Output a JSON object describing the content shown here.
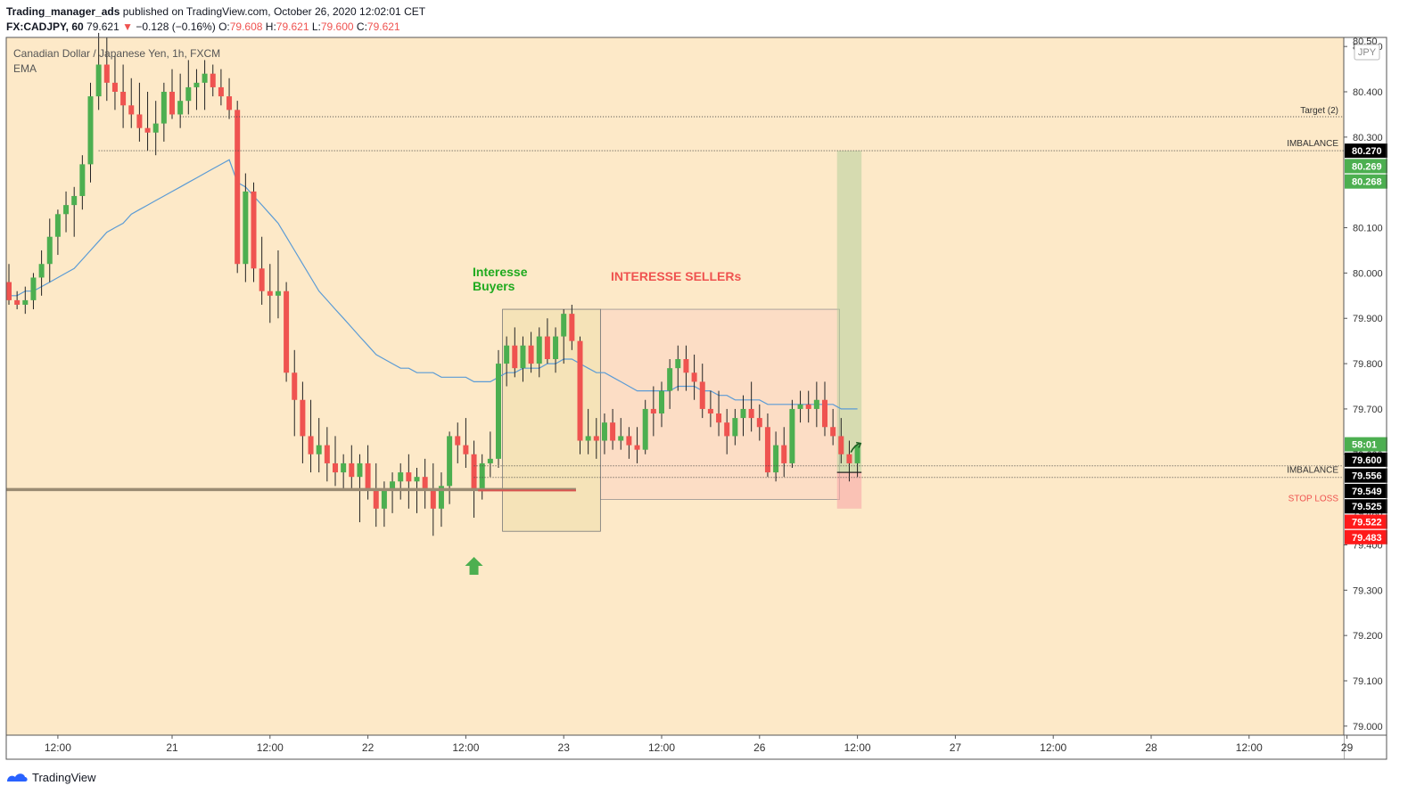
{
  "header": {
    "author": "Trading_manager_ads",
    "published_text": "published on TradingView.com, October 26, 2020 12:02:01 CET",
    "symbol": "FX:CADJPY, 60",
    "last": "79.621",
    "arrow": "▼",
    "change": "−0.128 (−0.16%)",
    "o_label": "O:",
    "o_value": "79.608",
    "h_label": "H:",
    "h_value": "79.621",
    "l_label": "L:",
    "l_value": "79.600",
    "c_label": "C:",
    "c_value": "79.621"
  },
  "legend": {
    "title": "Canadian Dollar / Japanese Yen, 1h, FXCM",
    "indicator": "EMA"
  },
  "currency_badge": "JPY",
  "footer": {
    "brand": "TradingView"
  },
  "colors": {
    "background": "#fde9c8",
    "up": "#4caf50",
    "down": "#ef5350",
    "ema": "#5b9bd5",
    "buyers_text": "#1faa1f",
    "sellers_text": "#ef5350",
    "black_badge": "#000000",
    "green_badge": "#4caf50",
    "red_badge": "#ff1a1a"
  },
  "chart_data": {
    "type": "candlestick",
    "ylim": [
      78.98,
      80.52
    ],
    "y_ticks": [
      "80.500",
      "80.400",
      "80.300",
      "80.100",
      "80.000",
      "79.900",
      "79.800",
      "79.700",
      "79.600",
      "79.400",
      "79.300",
      "79.200",
      "79.100",
      "79.000"
    ],
    "x_ticks": [
      {
        "label": "12:00",
        "i": 6
      },
      {
        "label": "21",
        "i": 20
      },
      {
        "label": "12:00",
        "i": 32
      },
      {
        "label": "22",
        "i": 44
      },
      {
        "label": "12:00",
        "i": 56
      },
      {
        "label": "23",
        "i": 68
      },
      {
        "label": "12:00",
        "i": 80
      },
      {
        "label": "26",
        "i": 92
      },
      {
        "label": "12:00",
        "i": 104
      },
      {
        "label": "27",
        "i": 116
      },
      {
        "label": "12:00",
        "i": 128
      },
      {
        "label": "28",
        "i": 140
      },
      {
        "label": "12:00",
        "i": 152
      },
      {
        "label": "29",
        "i": 164
      }
    ],
    "candles": [
      [
        79.98,
        80.02,
        79.93,
        79.94
      ],
      [
        79.94,
        79.96,
        79.92,
        79.93
      ],
      [
        79.93,
        79.97,
        79.91,
        79.94
      ],
      [
        79.94,
        80.0,
        79.92,
        79.99
      ],
      [
        79.99,
        80.05,
        79.95,
        80.02
      ],
      [
        80.02,
        80.12,
        79.98,
        80.08
      ],
      [
        80.08,
        80.14,
        80.04,
        80.13
      ],
      [
        80.13,
        80.18,
        80.09,
        80.15
      ],
      [
        80.15,
        80.19,
        80.08,
        80.17
      ],
      [
        80.17,
        80.26,
        80.14,
        80.24
      ],
      [
        80.24,
        80.42,
        80.2,
        80.39
      ],
      [
        80.39,
        80.53,
        80.36,
        80.46
      ],
      [
        80.46,
        80.52,
        80.38,
        80.42
      ],
      [
        80.42,
        80.48,
        80.36,
        80.4
      ],
      [
        80.4,
        80.46,
        80.32,
        80.37
      ],
      [
        80.37,
        80.43,
        80.32,
        80.35
      ],
      [
        80.35,
        80.42,
        80.29,
        80.32
      ],
      [
        80.32,
        80.4,
        80.27,
        80.31
      ],
      [
        80.31,
        80.38,
        80.26,
        80.33
      ],
      [
        80.33,
        80.42,
        80.29,
        80.4
      ],
      [
        80.4,
        80.45,
        80.34,
        80.35
      ],
      [
        80.35,
        80.44,
        80.32,
        80.38
      ],
      [
        80.38,
        80.47,
        80.35,
        80.41
      ],
      [
        80.41,
        80.45,
        80.36,
        80.42
      ],
      [
        80.42,
        80.47,
        80.36,
        80.44
      ],
      [
        80.44,
        80.46,
        80.39,
        80.41
      ],
      [
        80.41,
        80.45,
        80.37,
        80.39
      ],
      [
        80.39,
        80.43,
        80.34,
        80.36
      ],
      [
        80.36,
        80.38,
        80.0,
        80.02
      ],
      [
        80.02,
        80.22,
        79.98,
        80.18
      ],
      [
        80.18,
        80.2,
        79.98,
        80.01
      ],
      [
        80.01,
        80.08,
        79.93,
        79.96
      ],
      [
        79.96,
        80.02,
        79.89,
        79.95
      ],
      [
        79.95,
        80.05,
        79.9,
        79.96
      ],
      [
        79.96,
        79.98,
        79.76,
        79.78
      ],
      [
        79.78,
        79.83,
        79.64,
        79.72
      ],
      [
        79.72,
        79.76,
        79.58,
        79.64
      ],
      [
        79.64,
        79.72,
        79.56,
        79.6
      ],
      [
        79.6,
        79.68,
        79.56,
        79.62
      ],
      [
        79.62,
        79.66,
        79.54,
        79.58
      ],
      [
        79.58,
        79.64,
        79.53,
        79.56
      ],
      [
        79.56,
        79.6,
        79.52,
        79.58
      ],
      [
        79.58,
        79.62,
        79.52,
        79.55
      ],
      [
        79.55,
        79.6,
        79.45,
        79.58
      ],
      [
        79.58,
        79.62,
        79.5,
        79.52
      ],
      [
        79.52,
        79.58,
        79.44,
        79.48
      ],
      [
        79.48,
        79.54,
        79.44,
        79.52
      ],
      [
        79.52,
        79.56,
        79.47,
        79.54
      ],
      [
        79.54,
        79.58,
        79.5,
        79.56
      ],
      [
        79.56,
        79.6,
        79.48,
        79.54
      ],
      [
        79.54,
        79.57,
        79.47,
        79.55
      ],
      [
        79.55,
        79.59,
        79.48,
        79.52
      ],
      [
        79.52,
        79.58,
        79.42,
        79.48
      ],
      [
        79.48,
        79.56,
        79.44,
        79.53
      ],
      [
        79.53,
        79.65,
        79.49,
        79.64
      ],
      [
        79.64,
        79.67,
        79.58,
        79.62
      ],
      [
        79.62,
        79.68,
        79.57,
        79.6
      ],
      [
        79.6,
        79.63,
        79.46,
        79.52
      ],
      [
        79.52,
        79.6,
        79.5,
        79.58
      ],
      [
        79.58,
        79.65,
        79.55,
        79.59
      ],
      [
        79.59,
        79.83,
        79.57,
        79.8
      ],
      [
        79.8,
        79.86,
        79.75,
        79.84
      ],
      [
        79.84,
        79.88,
        79.77,
        79.79
      ],
      [
        79.79,
        79.86,
        79.76,
        79.84
      ],
      [
        79.84,
        79.87,
        79.78,
        79.8
      ],
      [
        79.8,
        79.88,
        79.77,
        79.86
      ],
      [
        79.86,
        79.9,
        79.8,
        79.81
      ],
      [
        79.81,
        79.88,
        79.78,
        79.86
      ],
      [
        79.86,
        79.92,
        79.8,
        79.91
      ],
      [
        79.91,
        79.93,
        79.83,
        79.85
      ],
      [
        79.85,
        79.86,
        79.6,
        79.63
      ],
      [
        79.63,
        79.7,
        79.6,
        79.64
      ],
      [
        79.64,
        79.68,
        79.59,
        79.63
      ],
      [
        79.63,
        79.69,
        79.6,
        79.67
      ],
      [
        79.67,
        79.7,
        79.61,
        79.63
      ],
      [
        79.63,
        79.68,
        79.61,
        79.64
      ],
      [
        79.64,
        79.66,
        79.59,
        79.62
      ],
      [
        79.62,
        79.66,
        79.58,
        79.61
      ],
      [
        79.61,
        79.72,
        79.6,
        79.7
      ],
      [
        79.7,
        79.75,
        79.64,
        79.69
      ],
      [
        79.69,
        79.76,
        79.66,
        79.74
      ],
      [
        79.74,
        79.81,
        79.7,
        79.79
      ],
      [
        79.79,
        79.84,
        79.74,
        79.81
      ],
      [
        79.81,
        79.84,
        79.74,
        79.78
      ],
      [
        79.78,
        79.82,
        79.72,
        79.76
      ],
      [
        79.76,
        79.8,
        79.68,
        79.7
      ],
      [
        79.7,
        79.74,
        79.66,
        79.69
      ],
      [
        79.69,
        79.74,
        79.64,
        79.67
      ],
      [
        79.67,
        79.7,
        79.6,
        79.64
      ],
      [
        79.64,
        79.7,
        79.62,
        79.68
      ],
      [
        79.68,
        79.73,
        79.64,
        79.7
      ],
      [
        79.7,
        79.76,
        79.65,
        79.68
      ],
      [
        79.68,
        79.71,
        79.63,
        79.66
      ],
      [
        79.66,
        79.69,
        79.55,
        79.56
      ],
      [
        79.56,
        79.65,
        79.54,
        79.62
      ],
      [
        79.62,
        79.66,
        79.55,
        79.58
      ],
      [
        79.58,
        79.72,
        79.57,
        79.7
      ],
      [
        79.7,
        79.74,
        79.67,
        79.71
      ],
      [
        79.71,
        79.74,
        79.67,
        79.7
      ],
      [
        79.7,
        79.76,
        79.66,
        79.72
      ],
      [
        79.72,
        79.76,
        79.64,
        79.66
      ],
      [
        79.66,
        79.7,
        79.62,
        79.64
      ],
      [
        79.64,
        79.68,
        79.58,
        79.6
      ],
      [
        79.6,
        79.63,
        79.54,
        79.58
      ],
      [
        79.58,
        79.62,
        79.55,
        79.62
      ]
    ],
    "ema": [
      79.95,
      79.95,
      79.96,
      79.96,
      79.97,
      79.98,
      79.99,
      80.0,
      80.01,
      80.03,
      80.05,
      80.07,
      80.09,
      80.1,
      80.11,
      80.13,
      80.14,
      80.15,
      80.16,
      80.17,
      80.18,
      80.19,
      80.2,
      80.21,
      80.22,
      80.23,
      80.24,
      80.25,
      80.2,
      80.19,
      80.17,
      80.15,
      80.13,
      80.11,
      80.08,
      80.05,
      80.02,
      79.99,
      79.96,
      79.94,
      79.92,
      79.9,
      79.88,
      79.86,
      79.84,
      79.82,
      79.81,
      79.8,
      79.79,
      79.79,
      79.78,
      79.78,
      79.78,
      79.77,
      79.77,
      79.77,
      79.77,
      79.76,
      79.76,
      79.76,
      79.77,
      79.78,
      79.78,
      79.79,
      79.79,
      79.79,
      79.8,
      79.8,
      79.81,
      79.81,
      79.8,
      79.79,
      79.78,
      79.78,
      79.77,
      79.76,
      79.75,
      79.74,
      79.74,
      79.74,
      79.74,
      79.74,
      79.75,
      79.75,
      79.75,
      79.74,
      79.74,
      79.73,
      79.73,
      79.72,
      79.72,
      79.72,
      79.72,
      79.71,
      79.71,
      79.71,
      79.71,
      79.71,
      79.71,
      79.71,
      79.71,
      79.71,
      79.7,
      79.7,
      79.7
    ],
    "annotations": {
      "buyers": [
        "Interesse",
        "Buyers"
      ],
      "sellers": "INTERESSE SELLERs",
      "target_label": "Target (2)",
      "target_price": 80.345,
      "imbalance_top_label": "IMBALANCE",
      "imbalance_top_price": 80.27,
      "imbalance_bottom_label": "IMBALANCE",
      "imbalance_bottom_price": 79.549,
      "stop_loss_label": "STOP LOSS",
      "stop_loss_price": 79.52,
      "support_price": 79.522,
      "buyers_box": {
        "i_start": 60.5,
        "i_end": 72.5,
        "high": 79.92,
        "low": 79.43
      },
      "sellers_box": {
        "i_start": 72.5,
        "i_end": 101.8,
        "high": 79.92,
        "low": 79.5
      },
      "long_position": {
        "i_start": 101.5,
        "i_end": 104.5,
        "entry": 79.56,
        "target": 80.27,
        "stop": 79.48
      },
      "arrow_up_i": 57
    },
    "price_badges": [
      {
        "label": "80.270",
        "price": 80.27,
        "kind": "black"
      },
      {
        "label": "80.269",
        "price": 80.236,
        "kind": "green"
      },
      {
        "label": "80.268",
        "price": 80.202,
        "kind": "green"
      },
      {
        "label": "58:01",
        "price": 79.622,
        "kind": "green"
      },
      {
        "label": "79.600",
        "price": 79.588,
        "kind": "black"
      },
      {
        "label": "79.556",
        "price": 79.553,
        "kind": "black"
      },
      {
        "label": "79.549",
        "price": 79.519,
        "kind": "black"
      },
      {
        "label": "79.525",
        "price": 79.485,
        "kind": "black"
      },
      {
        "label": "79.522",
        "price": 79.451,
        "kind": "red"
      },
      {
        "label": "79.483",
        "price": 79.417,
        "kind": "red"
      }
    ],
    "partial_ticks": [
      "79.480",
      "80.50"
    ]
  }
}
